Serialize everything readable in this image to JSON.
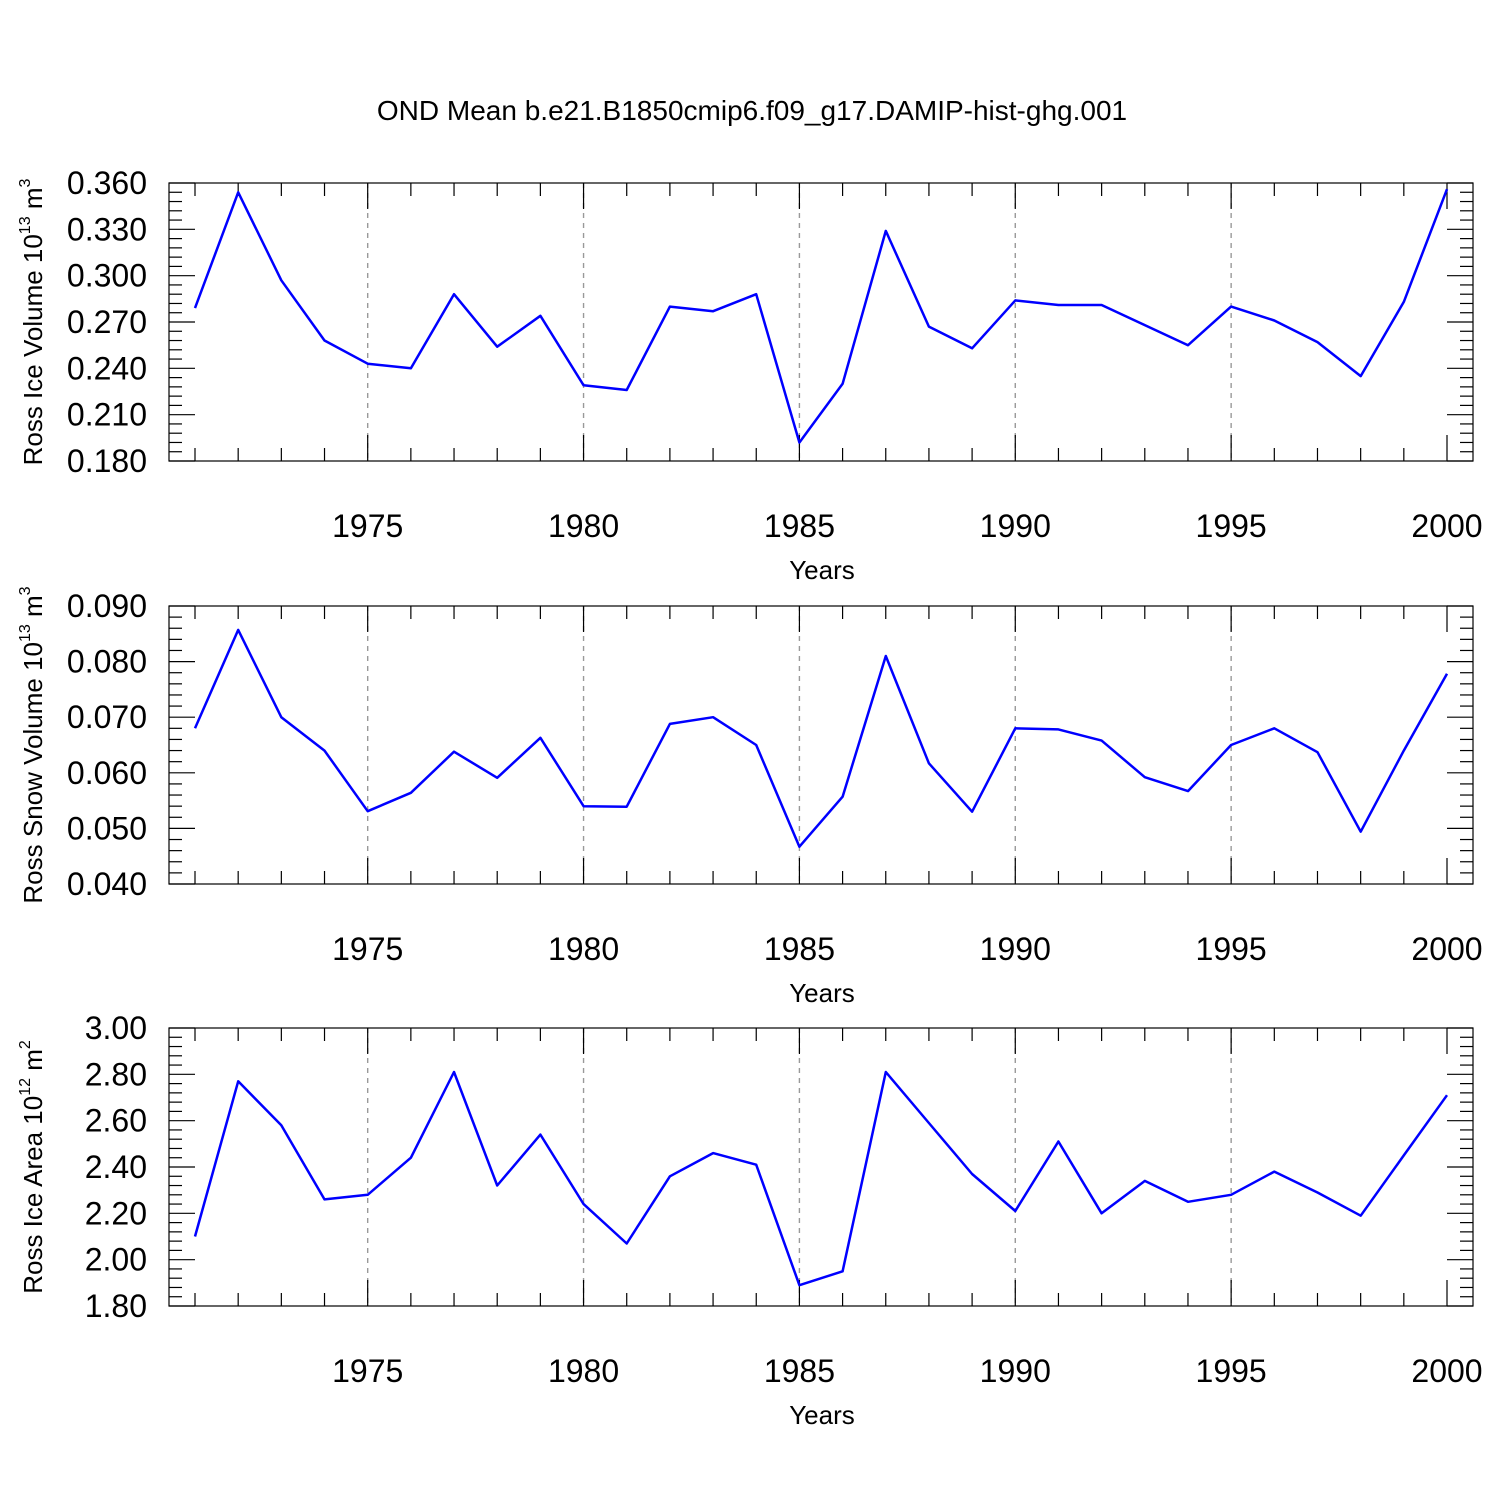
{
  "title": "OND Mean b.e21.B1850cmip6.f09_g17.DAMIP-hist-ghg.001",
  "colors": {
    "line": "#0000ff",
    "grid": "#999999"
  },
  "chart_data": [
    {
      "type": "line",
      "xlabel": "Years",
      "ylabel": {
        "main": "Ross Ice Volume 10",
        "exp": "13",
        "unit": " m",
        "unitExp": "3"
      },
      "xlim": [
        1971,
        2000
      ],
      "ylim": [
        0.18,
        0.36
      ],
      "xticks": [
        1975,
        1980,
        1985,
        1990,
        1995,
        2000
      ],
      "ytick_labels": [
        "0.180",
        "0.210",
        "0.240",
        "0.270",
        "0.300",
        "0.330",
        "0.360"
      ],
      "yminor": 0.006,
      "grid": "vertical dashed at major x ticks",
      "x": [
        1971,
        1972,
        1973,
        1974,
        1975,
        1976,
        1977,
        1978,
        1979,
        1980,
        1981,
        1982,
        1983,
        1984,
        1985,
        1986,
        1987,
        1988,
        1989,
        1990,
        1991,
        1992,
        1993,
        1994,
        1995,
        1996,
        1997,
        1998,
        1999,
        2000
      ],
      "values": [
        0.279,
        0.354,
        0.297,
        0.258,
        0.243,
        0.24,
        0.288,
        0.254,
        0.274,
        0.229,
        0.226,
        0.28,
        0.277,
        0.288,
        0.192,
        0.23,
        0.329,
        0.267,
        0.253,
        0.284,
        0.281,
        0.281,
        0.268,
        0.255,
        0.28,
        0.271,
        0.257,
        0.235,
        0.283,
        0.356
      ]
    },
    {
      "type": "line",
      "xlabel": "Years",
      "ylabel": {
        "main": "Ross Snow Volume 10",
        "exp": "13",
        "unit": " m",
        "unitExp": "3"
      },
      "xlim": [
        1971,
        2000
      ],
      "ylim": [
        0.04,
        0.09
      ],
      "xticks": [
        1975,
        1980,
        1985,
        1990,
        1995,
        2000
      ],
      "ytick_labels": [
        "0.040",
        "0.050",
        "0.060",
        "0.070",
        "0.080",
        "0.090"
      ],
      "yminor": 0.002,
      "grid": "vertical dashed at major x ticks",
      "x": [
        1971,
        1972,
        1973,
        1974,
        1975,
        1976,
        1977,
        1978,
        1979,
        1980,
        1981,
        1982,
        1983,
        1984,
        1985,
        1986,
        1987,
        1988,
        1989,
        1990,
        1991,
        1992,
        1993,
        1994,
        1995,
        1996,
        1997,
        1998,
        1999,
        2000
      ],
      "values": [
        0.068,
        0.0857,
        0.07,
        0.064,
        0.0531,
        0.0564,
        0.0638,
        0.0591,
        0.0663,
        0.054,
        0.0539,
        0.0688,
        0.07,
        0.065,
        0.0467,
        0.0557,
        0.081,
        0.0617,
        0.053,
        0.068,
        0.0678,
        0.0658,
        0.0592,
        0.0567,
        0.065,
        0.068,
        0.0637,
        0.0494,
        0.064,
        0.0778
      ]
    },
    {
      "type": "line",
      "xlabel": "Years",
      "ylabel": {
        "main": "Ross Ice Area 10",
        "exp": "12",
        "unit": " m",
        "unitExp": "2"
      },
      "xlim": [
        1971,
        2000
      ],
      "ylim": [
        1.8,
        3.0
      ],
      "xticks": [
        1975,
        1980,
        1985,
        1990,
        1995,
        2000
      ],
      "ytick_labels": [
        "1.80",
        "2.00",
        "2.20",
        "2.40",
        "2.60",
        "2.80",
        "3.00"
      ],
      "yminor": 0.04,
      "grid": "vertical dashed at major x ticks",
      "x": [
        1971,
        1972,
        1973,
        1974,
        1975,
        1976,
        1977,
        1978,
        1979,
        1980,
        1981,
        1982,
        1983,
        1984,
        1985,
        1986,
        1987,
        1988,
        1989,
        1990,
        1991,
        1992,
        1993,
        1994,
        1995,
        1996,
        1997,
        1998,
        1999,
        2000
      ],
      "values": [
        2.1,
        2.77,
        2.58,
        2.26,
        2.28,
        2.44,
        2.81,
        2.32,
        2.54,
        2.24,
        2.07,
        2.36,
        2.46,
        2.41,
        1.89,
        1.95,
        2.81,
        2.59,
        2.37,
        2.21,
        2.51,
        2.2,
        2.34,
        2.25,
        2.28,
        2.38,
        2.29,
        2.19,
        2.45,
        2.71
      ]
    }
  ]
}
